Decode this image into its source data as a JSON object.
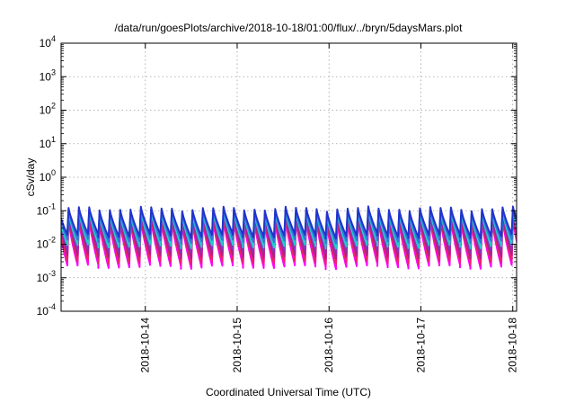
{
  "chart_data": {
    "type": "line",
    "title": "/data/run/goesPlots/archive/2018-10-18/01:00/flux/../bryn/5daysMars.plot",
    "xlabel": "Coordinated Universal Time (UTC)",
    "ylabel": "cSv/day",
    "y_scale": "log",
    "ylim": [
      0.0001,
      10000
    ],
    "xlim": [
      "2018-10-13T02:00",
      "2018-10-18T01:00"
    ],
    "x_ticks": [
      "2018-10-14",
      "2018-10-15",
      "2018-10-16",
      "2018-10-17",
      "2018-10-18"
    ],
    "y_ticks": [
      {
        "base": "10",
        "exp": "-4"
      },
      {
        "base": "10",
        "exp": "-3"
      },
      {
        "base": "10",
        "exp": "-2"
      },
      {
        "base": "10",
        "exp": "-1"
      },
      {
        "base": "10",
        "exp": "0"
      },
      {
        "base": "10",
        "exp": "1"
      },
      {
        "base": "10",
        "exp": "2"
      },
      {
        "base": "10",
        "exp": "3"
      },
      {
        "base": "10",
        "exp": "4"
      }
    ],
    "grid": true,
    "legend": "none",
    "pattern": "sawtooth",
    "period_hours": 2.7,
    "series": [
      {
        "color": "#ff00ff",
        "peak": 0.05,
        "trough": 0.0022
      },
      {
        "color": "#ee2266",
        "peak": 0.06,
        "trough": 0.003
      },
      {
        "color": "#aa2288",
        "peak": 0.07,
        "trough": 0.0045
      },
      {
        "color": "#8833bb",
        "peak": 0.085,
        "trough": 0.0065
      },
      {
        "color": "#22cccc",
        "peak": 0.09,
        "trough": 0.009
      },
      {
        "color": "#3377dd",
        "peak": 0.1,
        "trough": 0.013
      },
      {
        "color": "#2233cc",
        "peak": 0.115,
        "trough": 0.018
      }
    ]
  }
}
